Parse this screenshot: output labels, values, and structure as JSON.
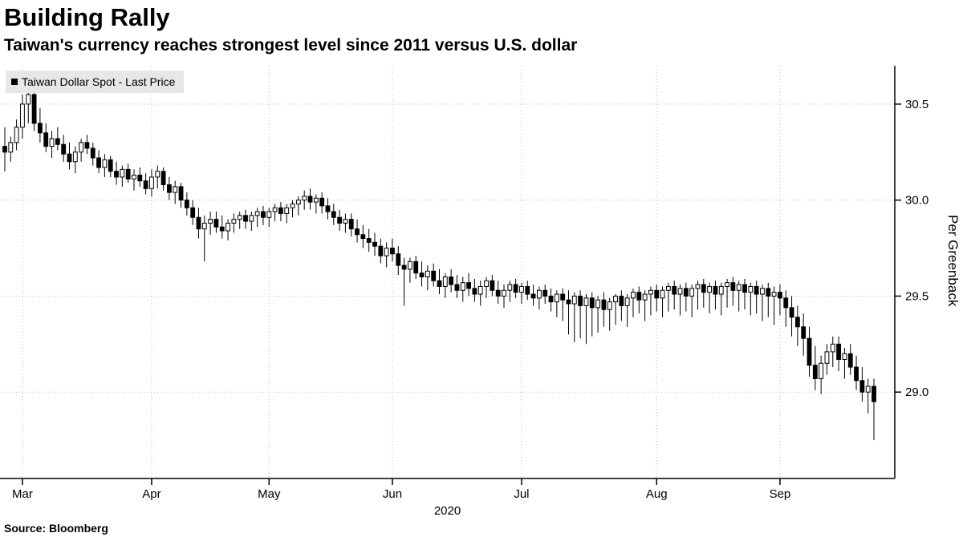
{
  "header": {
    "title": "Building Rally",
    "subtitle": "Taiwan's currency reaches strongest level since 2011 versus U.S. dollar"
  },
  "footer": {
    "source": "Source:  Bloomberg"
  },
  "colors": {
    "up_fill": "#ffffff",
    "down_fill": "#000000",
    "stroke": "#000000",
    "grid": "#b9b9b9",
    "legend_bg": "#e7e7e7"
  },
  "chart_data": {
    "type": "candlestick",
    "title": "Building Rally",
    "subtitle": "Taiwan's currency reaches strongest level since 2011 versus U.S. dollar",
    "series": "Taiwan Dollar Spot - Last Price",
    "ylabel": "Per Greenback",
    "xlabel": "2020",
    "ylim": [
      28.55,
      30.7
    ],
    "yticks": [
      29.0,
      29.5,
      30.0,
      30.5
    ],
    "grid": true,
    "legend_position": "top-left",
    "xticks": [
      {
        "label": "Mar",
        "index": 3
      },
      {
        "label": "Apr",
        "index": 25
      },
      {
        "label": "May",
        "index": 45
      },
      {
        "label": "Jun",
        "index": 66
      },
      {
        "label": "Jul",
        "index": 88
      },
      {
        "label": "Aug",
        "index": 111
      },
      {
        "label": "Sep",
        "index": 132
      }
    ],
    "ohlc": [
      [
        30.28,
        30.38,
        30.15,
        30.25
      ],
      [
        30.25,
        30.33,
        30.2,
        30.3
      ],
      [
        30.3,
        30.42,
        30.26,
        30.38
      ],
      [
        30.38,
        30.55,
        30.32,
        30.5
      ],
      [
        30.5,
        30.6,
        30.4,
        30.55
      ],
      [
        30.55,
        30.58,
        30.36,
        30.4
      ],
      [
        30.4,
        30.48,
        30.3,
        30.35
      ],
      [
        30.35,
        30.4,
        30.25,
        30.28
      ],
      [
        30.28,
        30.36,
        30.22,
        30.32
      ],
      [
        30.32,
        30.38,
        30.26,
        30.29
      ],
      [
        30.29,
        30.34,
        30.2,
        30.24
      ],
      [
        30.24,
        30.3,
        30.16,
        30.2
      ],
      [
        30.2,
        30.28,
        30.14,
        30.25
      ],
      [
        30.25,
        30.32,
        30.2,
        30.3
      ],
      [
        30.3,
        30.34,
        30.24,
        30.27
      ],
      [
        30.27,
        30.3,
        30.18,
        30.22
      ],
      [
        30.22,
        30.26,
        30.14,
        30.17
      ],
      [
        30.17,
        30.24,
        30.12,
        30.21
      ],
      [
        30.21,
        30.23,
        30.12,
        30.15
      ],
      [
        30.15,
        30.2,
        30.08,
        30.12
      ],
      [
        30.12,
        30.18,
        30.07,
        30.16
      ],
      [
        30.16,
        30.19,
        30.09,
        30.11
      ],
      [
        30.11,
        30.16,
        30.05,
        30.13
      ],
      [
        30.13,
        30.17,
        30.07,
        30.1
      ],
      [
        30.1,
        30.14,
        30.03,
        30.06
      ],
      [
        30.06,
        30.16,
        30.02,
        30.12
      ],
      [
        30.12,
        30.18,
        30.06,
        30.15
      ],
      [
        30.15,
        30.17,
        30.05,
        30.08
      ],
      [
        30.08,
        30.12,
        30.0,
        30.04
      ],
      [
        30.04,
        30.1,
        29.98,
        30.07
      ],
      [
        30.07,
        30.09,
        29.96,
        30.0
      ],
      [
        30.0,
        30.04,
        29.92,
        29.96
      ],
      [
        29.96,
        30.0,
        29.87,
        29.91
      ],
      [
        29.91,
        29.96,
        29.8,
        29.85
      ],
      [
        29.85,
        29.92,
        29.68,
        29.88
      ],
      [
        29.88,
        29.94,
        29.82,
        29.9
      ],
      [
        29.9,
        29.94,
        29.83,
        29.86
      ],
      [
        29.86,
        29.92,
        29.8,
        29.84
      ],
      [
        29.84,
        29.9,
        29.79,
        29.88
      ],
      [
        29.88,
        29.93,
        29.83,
        29.9
      ],
      [
        29.9,
        29.94,
        29.85,
        29.92
      ],
      [
        29.92,
        29.95,
        29.85,
        29.89
      ],
      [
        29.89,
        29.94,
        29.84,
        29.92
      ],
      [
        29.92,
        29.96,
        29.86,
        29.94
      ],
      [
        29.94,
        29.97,
        29.87,
        29.91
      ],
      [
        29.91,
        29.96,
        29.86,
        29.94
      ],
      [
        29.94,
        29.98,
        29.89,
        29.96
      ],
      [
        29.96,
        29.99,
        29.89,
        29.93
      ],
      [
        29.93,
        29.98,
        29.88,
        29.96
      ],
      [
        29.96,
        30.0,
        29.91,
        29.98
      ],
      [
        29.98,
        30.02,
        29.92,
        30.0
      ],
      [
        30.0,
        30.05,
        29.95,
        30.02
      ],
      [
        30.02,
        30.06,
        29.95,
        29.99
      ],
      [
        29.99,
        30.03,
        29.93,
        30.01
      ],
      [
        30.01,
        30.04,
        29.93,
        29.97
      ],
      [
        29.97,
        30.01,
        29.9,
        29.94
      ],
      [
        29.94,
        29.98,
        29.87,
        29.91
      ],
      [
        29.91,
        29.95,
        29.84,
        29.88
      ],
      [
        29.88,
        29.93,
        29.83,
        29.9
      ],
      [
        29.9,
        29.93,
        29.81,
        29.85
      ],
      [
        29.85,
        29.9,
        29.78,
        29.82
      ],
      [
        29.82,
        29.87,
        29.75,
        29.8
      ],
      [
        29.8,
        29.85,
        29.73,
        29.78
      ],
      [
        29.78,
        29.83,
        29.71,
        29.76
      ],
      [
        29.76,
        29.8,
        29.67,
        29.71
      ],
      [
        29.71,
        29.78,
        29.65,
        29.75
      ],
      [
        29.75,
        29.8,
        29.68,
        29.72
      ],
      [
        29.72,
        29.76,
        29.61,
        29.66
      ],
      [
        29.66,
        29.7,
        29.45,
        29.64
      ],
      [
        29.64,
        29.7,
        29.57,
        29.68
      ],
      [
        29.68,
        29.71,
        29.59,
        29.62
      ],
      [
        29.62,
        29.68,
        29.55,
        29.6
      ],
      [
        29.6,
        29.66,
        29.53,
        29.63
      ],
      [
        29.63,
        29.67,
        29.55,
        29.58
      ],
      [
        29.58,
        29.64,
        29.51,
        29.55
      ],
      [
        29.55,
        29.62,
        29.49,
        29.6
      ],
      [
        29.6,
        29.64,
        29.52,
        29.56
      ],
      [
        29.56,
        29.61,
        29.49,
        29.53
      ],
      [
        29.53,
        29.6,
        29.47,
        29.57
      ],
      [
        29.57,
        29.62,
        29.5,
        29.54
      ],
      [
        29.54,
        29.59,
        29.47,
        29.51
      ],
      [
        29.51,
        29.58,
        29.45,
        29.55
      ],
      [
        29.55,
        29.6,
        29.49,
        29.58
      ],
      [
        29.58,
        29.61,
        29.5,
        29.53
      ],
      [
        29.53,
        29.58,
        29.46,
        29.5
      ],
      [
        29.5,
        29.56,
        29.44,
        29.53
      ],
      [
        29.53,
        29.58,
        29.47,
        29.56
      ],
      [
        29.56,
        29.59,
        29.49,
        29.52
      ],
      [
        29.52,
        29.57,
        29.46,
        29.55
      ],
      [
        29.55,
        29.58,
        29.48,
        29.51
      ],
      [
        29.51,
        29.56,
        29.45,
        29.49
      ],
      [
        29.49,
        29.55,
        29.43,
        29.53
      ],
      [
        29.53,
        29.56,
        29.46,
        29.5
      ],
      [
        29.5,
        29.54,
        29.42,
        29.47
      ],
      [
        29.47,
        29.53,
        29.39,
        29.51
      ],
      [
        29.51,
        29.54,
        29.37,
        29.48
      ],
      [
        29.48,
        29.53,
        29.3,
        29.46
      ],
      [
        29.46,
        29.52,
        29.26,
        29.5
      ],
      [
        29.5,
        29.53,
        29.28,
        29.45
      ],
      [
        29.45,
        29.51,
        29.25,
        29.49
      ],
      [
        29.49,
        29.52,
        29.29,
        29.44
      ],
      [
        29.44,
        29.5,
        29.31,
        29.48
      ],
      [
        29.48,
        29.52,
        29.34,
        29.43
      ],
      [
        29.43,
        29.49,
        29.32,
        29.47
      ],
      [
        29.47,
        29.51,
        29.35,
        29.5
      ],
      [
        29.5,
        29.53,
        29.37,
        29.45
      ],
      [
        29.45,
        29.51,
        29.34,
        29.49
      ],
      [
        29.49,
        29.54,
        29.39,
        29.52
      ],
      [
        29.52,
        29.55,
        29.41,
        29.48
      ],
      [
        29.48,
        29.53,
        29.37,
        29.51
      ],
      [
        29.51,
        29.55,
        29.4,
        29.53
      ],
      [
        29.53,
        29.56,
        29.42,
        29.49
      ],
      [
        29.49,
        29.55,
        29.39,
        29.53
      ],
      [
        29.53,
        29.57,
        29.42,
        29.55
      ],
      [
        29.55,
        29.58,
        29.43,
        29.51
      ],
      [
        29.51,
        29.56,
        29.4,
        29.54
      ],
      [
        29.54,
        29.57,
        29.42,
        29.5
      ],
      [
        29.5,
        29.56,
        29.39,
        29.54
      ],
      [
        29.54,
        29.58,
        29.43,
        29.56
      ],
      [
        29.56,
        29.59,
        29.44,
        29.52
      ],
      [
        29.52,
        29.57,
        29.41,
        29.55
      ],
      [
        29.55,
        29.58,
        29.43,
        29.51
      ],
      [
        29.51,
        29.57,
        29.4,
        29.55
      ],
      [
        29.55,
        29.59,
        29.44,
        29.57
      ],
      [
        29.57,
        29.6,
        29.45,
        29.53
      ],
      [
        29.53,
        29.58,
        29.42,
        29.56
      ],
      [
        29.56,
        29.59,
        29.43,
        29.52
      ],
      [
        29.52,
        29.57,
        29.4,
        29.55
      ],
      [
        29.55,
        29.58,
        29.41,
        29.51
      ],
      [
        29.51,
        29.56,
        29.37,
        29.54
      ],
      [
        29.54,
        29.57,
        29.39,
        29.5
      ],
      [
        29.5,
        29.55,
        29.35,
        29.52
      ],
      [
        29.52,
        29.56,
        29.4,
        29.49
      ],
      [
        29.49,
        29.53,
        29.34,
        29.44
      ],
      [
        29.44,
        29.5,
        29.29,
        29.39
      ],
      [
        29.39,
        29.45,
        29.24,
        29.34
      ],
      [
        29.34,
        29.41,
        29.19,
        29.28
      ],
      [
        29.28,
        29.34,
        29.08,
        29.14
      ],
      [
        29.14,
        29.24,
        29.01,
        29.07
      ],
      [
        29.07,
        29.19,
        28.99,
        29.15
      ],
      [
        29.15,
        29.25,
        29.09,
        29.21
      ],
      [
        29.21,
        29.29,
        29.13,
        29.25
      ],
      [
        29.25,
        29.29,
        29.11,
        29.17
      ],
      [
        29.17,
        29.23,
        29.07,
        29.2
      ],
      [
        29.2,
        29.25,
        29.09,
        29.13
      ],
      [
        29.13,
        29.19,
        29.01,
        29.06
      ],
      [
        29.06,
        29.13,
        28.95,
        29.0
      ],
      [
        29.0,
        29.07,
        28.89,
        29.03
      ],
      [
        29.03,
        29.07,
        28.75,
        28.95
      ]
    ]
  }
}
